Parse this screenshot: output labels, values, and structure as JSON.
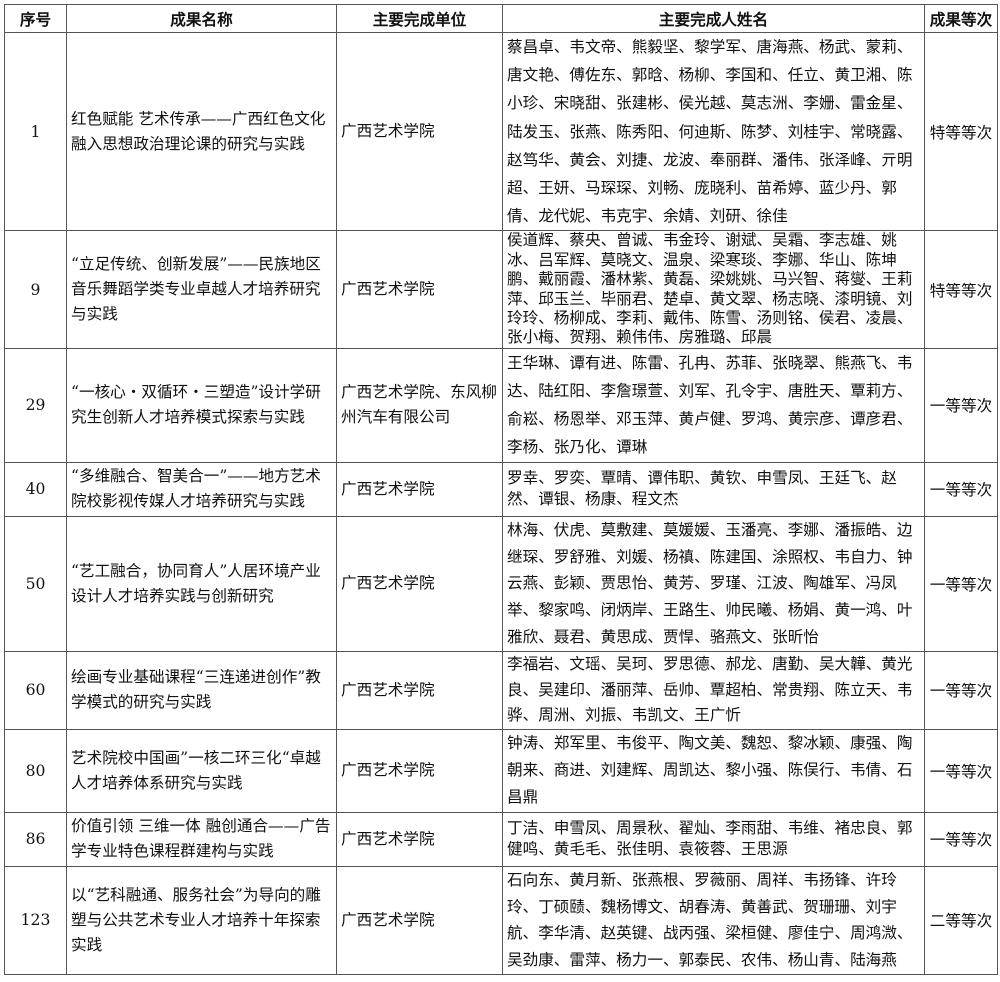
{
  "headers": [
    "序号",
    "成果名称",
    "主要完成单位",
    "主要完成人姓名",
    "成果等次"
  ],
  "rows": [
    {
      "no": "1",
      "title": "红色赋能 艺术传承——广西红色文化融入思想政治理论课的研究与实践",
      "unit": "广西艺术学院",
      "people": "蔡昌卓、韦文帝、熊毅坚、黎学军、唐海燕、杨武、蒙莉、唐文艳、傅佐东、郭晗、杨柳、李国和、任立、黄卫湘、陈小珍、宋晓甜、张建彬、侯光越、莫志洲、李姗、雷金星、陆发玉、张燕、陈秀阳、何迪斯、陈梦、刘桂宇、常晓露、赵笃华、黄会、刘捷、龙波、奉丽群、潘伟、张泽峰、亓明超、王妍、马琛琛、刘畅、庞晓利、苗希婷、蓝少丹、郭倩、龙代妮、韦克宇、余婧、刘研、徐佳",
      "grade": "特等等次"
    },
    {
      "no": "9",
      "title": "“立足传统、创新发展”——民族地区音乐舞蹈学类专业卓越人才培养研究与实践",
      "unit": "广西艺术学院",
      "people": "侯道辉、蔡央、曾诚、韦金玲、谢斌、吴霜、李志雄、姚冰、吕军辉、莫晓文、温泉、梁寒琰、李娜、华山、陈坤鹏、戴丽霞、潘林紫、黄磊、梁姚姚、马兴智、蒋燮、王莉萍、邱玉兰、毕丽君、楚卓、黄文翠、杨志晓、漆明镜、刘玲玲、杨柳成、李莉、戴伟、陈雪、汤则铭、侯君、凌晨、张小梅、贺翔、赖伟伟、房雅璐、邱晨",
      "grade": "特等等次"
    },
    {
      "no": "29",
      "title": "“一核心・双循环・三塑造”设计学研究生创新人才培养模式探索与实践",
      "unit": "广西艺术学院、东风柳州汽车有限公司",
      "people": "王华琳、谭有进、陈雷、孔冉、苏菲、张晓翠、熊燕飞、韦达、陆红阳、李詹璟萱、刘军、孔令宇、唐胜天、覃莉方、俞崧、杨恩举、邓玉萍、黄卢健、罗鸿、黄宗彦、谭彦君、李杨、张乃化、谭琳",
      "grade": "一等等次"
    },
    {
      "no": "40",
      "title": "“多维融合、智美合一”——地方艺术院校影视传媒人才培养研究与实践",
      "unit": "广西艺术学院",
      "people": "罗幸、罗奕、覃晴、谭伟职、黄钦、申雪凤、王廷飞、赵然、谭银、杨康、程文杰",
      "grade": "一等等次"
    },
    {
      "no": "50",
      "title": "“艺工融合，协同育人”人居环境产业设计人才培养实践与创新研究",
      "unit": "广西艺术学院",
      "people": "林海、伏虎、莫敷建、莫媛媛、玉潘亮、李娜、潘振皓、边继琛、罗舒雅、刘媛、杨禛、陈建国、涂照权、韦自力、钟云燕、彭颖、贾思怡、黄芳、罗瑾、江波、陶雄军、冯凤举、黎家鸣、闭炳岸、王路生、帅民曦、杨娟、黄一鸿、叶雅欣、聂君、黄思成、贾悍、骆燕文、张昕怡",
      "grade": "一等等次"
    },
    {
      "no": "60",
      "title": "绘画专业基础课程“三连递进创作”教学模式的研究与实践",
      "unit": "广西艺术学院",
      "people": "李福岩、文瑶、吴珂、罗思德、郝龙、唐勤、吴大韡、黄光良、吴建印、潘丽萍、岳帅、覃超柏、常贵翔、陈立天、韦骅、周洲、刘振、韦凯文、王广忻",
      "grade": "一等等次"
    },
    {
      "no": "80",
      "title": "艺术院校中国画”一核二环三化“卓越人才培养体系研究与实践",
      "unit": "广西艺术学院",
      "people": "钟涛、郑军里、韦俊平、陶文美、魏恕、黎冰颖、康强、陶朝来、商进、刘建辉、周凯达、黎小强、陈俣行、韦倩、石昌鼎",
      "grade": "一等等次"
    },
    {
      "no": "86",
      "title": "价值引领 三维一体 融创通合——广告学专业特色课程群建构与实践",
      "unit": "广西艺术学院",
      "people": "丁洁、申雪凤、周景秋、翟灿、李雨甜、韦维、褚忠良、郭健鸣、黄毛毛、张佳明、袁筱蓉、王思源",
      "grade": "一等等次"
    },
    {
      "no": "123",
      "title": "以“艺科融通、服务社会”为导向的雕塑与公共艺术专业人才培养十年探索实践",
      "unit": "广西艺术学院",
      "people": "石向东、黄月新、张燕根、罗薇丽、周祥、韦扬锋、许玲玲、丁硕赜、魏杨博文、胡春涛、黄善武、贺珊珊、刘宇航、李华清、赵英键、战丙强、梁桓健、廖佳宁、周鸿溦、吴劲康、雷萍、杨力一、郭泰民、农伟、杨山青、陆海燕",
      "grade": "二等等次"
    }
  ]
}
